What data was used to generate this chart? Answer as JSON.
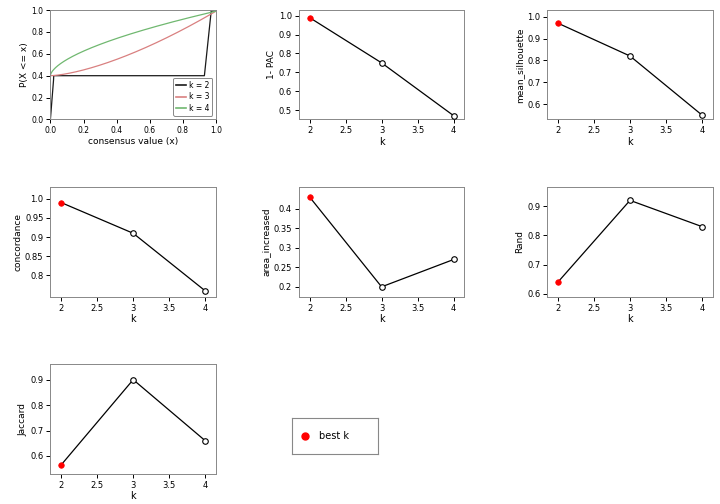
{
  "k_values": [
    2,
    3,
    4
  ],
  "one_minus_pac": [
    0.99,
    0.75,
    0.47
  ],
  "mean_silhouette": [
    0.97,
    0.82,
    0.55
  ],
  "concordance": [
    0.99,
    0.91,
    0.76
  ],
  "area_increased": [
    0.43,
    0.2,
    0.27
  ],
  "rand": [
    0.64,
    0.92,
    0.83
  ],
  "jaccard": [
    0.565,
    0.9,
    0.66
  ],
  "best_k": 2,
  "ecdf_colors": {
    "k2": "#1a1a1a",
    "k3": "#d98080",
    "k4": "#70b870"
  },
  "legend_labels": [
    "k = 2",
    "k = 3",
    "k = 4"
  ],
  "one_minus_pac_yticks": [
    0.5,
    0.6,
    0.7,
    0.8,
    0.9,
    1.0
  ],
  "mean_sil_yticks": [
    0.6,
    0.7,
    0.8,
    0.9,
    1.0
  ],
  "concordance_yticks": [
    0.8,
    0.85,
    0.9,
    0.95,
    1.0
  ],
  "area_yticks": [
    0.2,
    0.25,
    0.3,
    0.35,
    0.4
  ],
  "rand_yticks": [
    0.6,
    0.7,
    0.8,
    0.9
  ],
  "jaccard_yticks": [
    0.6,
    0.7,
    0.8,
    0.9
  ]
}
